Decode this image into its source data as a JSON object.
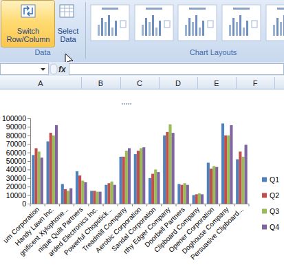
{
  "ribbon": {
    "buttons": [
      {
        "label_lines": [
          "Switch",
          "Row/Column"
        ]
      },
      {
        "label_lines": [
          "Select",
          "Data"
        ]
      }
    ],
    "groups": [
      "Data",
      "Chart Layouts"
    ]
  },
  "formula_bar": {
    "function_label": "fx"
  },
  "sheet": {
    "columns": [
      "A",
      "B",
      "C",
      "D",
      "E",
      "F"
    ]
  },
  "chart_data": {
    "type": "bar",
    "categories": [
      "um Corporation",
      "Handy Lawn Inc.",
      "gnificent Xylophone...",
      "nique Quilt Partners",
      "arded Electronics Inc.",
      "Powerful Chopstick...",
      "Treadmill Company",
      "Aerobic Corporation",
      "Sandal Corporation",
      "rthy Edger Company",
      "Doorbell Partners",
      "Clipboard Company",
      "Opener Corporation",
      "Doghouse Company",
      "Persuasive Clipboard..."
    ],
    "series": [
      {
        "name": "Q1",
        "color": "#4f81bd",
        "values": [
          57000,
          73000,
          23000,
          38000,
          15000,
          22000,
          55000,
          58000,
          30000,
          80000,
          23000,
          10000,
          48000,
          94000,
          52000
        ]
      },
      {
        "name": "Q2",
        "color": "#c0504d",
        "values": [
          65000,
          83000,
          17000,
          33000,
          15000,
          24000,
          55000,
          62000,
          35000,
          84000,
          22000,
          11000,
          41000,
          80000,
          61000
        ]
      },
      {
        "name": "Q3",
        "color": "#9bbb59",
        "values": [
          61000,
          80000,
          15000,
          27000,
          14000,
          26000,
          62000,
          65000,
          40000,
          93000,
          24000,
          12000,
          44000,
          80000,
          55000
        ]
      },
      {
        "name": "Q4",
        "color": "#8064a2",
        "values": [
          54000,
          92000,
          18000,
          25000,
          14000,
          22000,
          65000,
          66000,
          37000,
          83000,
          22000,
          11000,
          43000,
          92000,
          69000
        ]
      }
    ],
    "ylim": [
      0,
      100000
    ],
    "yticks": [
      0,
      10000,
      20000,
      30000,
      40000,
      50000,
      60000,
      70000,
      80000,
      90000,
      100000
    ],
    "grid": false,
    "legend": "right"
  }
}
